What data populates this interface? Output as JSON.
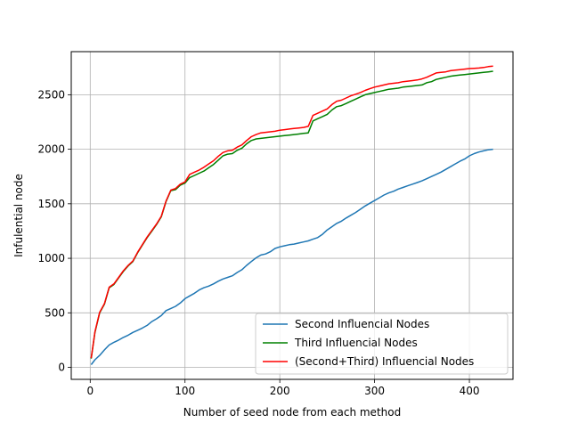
{
  "chart_data": {
    "type": "line",
    "title": "",
    "xlabel": "Number of seed node from each method",
    "ylabel": "Infulential node",
    "xlim": [
      -20,
      446
    ],
    "ylim": [
      -110,
      2895
    ],
    "xticks": [
      0,
      100,
      200,
      300,
      400
    ],
    "yticks": [
      0,
      500,
      1000,
      1500,
      2000,
      2500
    ],
    "grid": true,
    "legend_position": "lower-right",
    "series": [
      {
        "name": "Second Influencial Nodes",
        "color": "#1f77b4",
        "x": [
          1,
          5,
          10,
          15,
          20,
          25,
          30,
          35,
          40,
          45,
          50,
          55,
          60,
          65,
          70,
          75,
          80,
          85,
          90,
          95,
          100,
          105,
          110,
          115,
          120,
          125,
          130,
          135,
          140,
          145,
          150,
          155,
          160,
          165,
          170,
          175,
          180,
          185,
          190,
          195,
          200,
          205,
          210,
          215,
          220,
          225,
          230,
          235,
          240,
          245,
          250,
          255,
          260,
          265,
          270,
          275,
          280,
          285,
          290,
          295,
          300,
          305,
          310,
          315,
          320,
          325,
          330,
          335,
          340,
          345,
          350,
          355,
          360,
          365,
          370,
          375,
          380,
          385,
          390,
          395,
          400,
          405,
          410,
          415,
          420,
          425
        ],
        "y": [
          25,
          70,
          110,
          160,
          205,
          230,
          250,
          275,
          295,
          320,
          340,
          360,
          385,
          420,
          445,
          475,
          520,
          540,
          560,
          590,
          630,
          655,
          680,
          710,
          730,
          745,
          765,
          790,
          810,
          825,
          840,
          870,
          895,
          935,
          970,
          1005,
          1030,
          1040,
          1060,
          1090,
          1105,
          1115,
          1125,
          1130,
          1140,
          1150,
          1160,
          1175,
          1190,
          1220,
          1260,
          1290,
          1320,
          1340,
          1370,
          1395,
          1420,
          1450,
          1480,
          1505,
          1530,
          1555,
          1580,
          1600,
          1615,
          1635,
          1650,
          1665,
          1680,
          1695,
          1710,
          1730,
          1750,
          1770,
          1790,
          1815,
          1840,
          1865,
          1890,
          1910,
          1940,
          1960,
          1975,
          1985,
          1995,
          2000
        ]
      },
      {
        "name": "Third Influencial Nodes",
        "color": "#008000",
        "x": [
          1,
          5,
          10,
          15,
          20,
          25,
          30,
          35,
          40,
          45,
          50,
          55,
          60,
          65,
          70,
          75,
          80,
          85,
          90,
          95,
          100,
          105,
          110,
          115,
          120,
          125,
          130,
          135,
          140,
          145,
          150,
          155,
          160,
          165,
          170,
          175,
          180,
          185,
          190,
          195,
          200,
          205,
          210,
          215,
          220,
          225,
          230,
          235,
          240,
          245,
          250,
          255,
          260,
          265,
          270,
          275,
          280,
          285,
          290,
          295,
          300,
          305,
          310,
          315,
          320,
          325,
          330,
          335,
          340,
          345,
          350,
          355,
          360,
          365,
          370,
          375,
          380,
          385,
          390,
          395,
          400,
          405,
          410,
          415,
          420,
          425
        ],
        "y": [
          80,
          320,
          500,
          580,
          730,
          760,
          820,
          880,
          930,
          970,
          1050,
          1120,
          1190,
          1250,
          1310,
          1380,
          1520,
          1620,
          1630,
          1670,
          1690,
          1740,
          1760,
          1780,
          1800,
          1830,
          1860,
          1900,
          1940,
          1955,
          1960,
          1990,
          2010,
          2050,
          2080,
          2095,
          2100,
          2105,
          2110,
          2115,
          2120,
          2125,
          2130,
          2135,
          2140,
          2145,
          2150,
          2260,
          2280,
          2300,
          2320,
          2360,
          2390,
          2400,
          2420,
          2440,
          2460,
          2480,
          2500,
          2510,
          2520,
          2530,
          2540,
          2550,
          2555,
          2560,
          2570,
          2575,
          2580,
          2585,
          2590,
          2610,
          2620,
          2640,
          2650,
          2660,
          2670,
          2675,
          2680,
          2685,
          2690,
          2695,
          2700,
          2705,
          2710,
          2715
        ]
      },
      {
        "name": "(Second+Third) Influencial Nodes",
        "color": "#ff0000",
        "x": [
          1,
          5,
          10,
          15,
          20,
          25,
          30,
          35,
          40,
          45,
          50,
          55,
          60,
          65,
          70,
          75,
          80,
          85,
          90,
          95,
          100,
          105,
          110,
          115,
          120,
          125,
          130,
          135,
          140,
          145,
          150,
          155,
          160,
          165,
          170,
          175,
          180,
          185,
          190,
          195,
          200,
          205,
          210,
          215,
          220,
          225,
          230,
          235,
          240,
          245,
          250,
          255,
          260,
          265,
          270,
          275,
          280,
          285,
          290,
          295,
          300,
          305,
          310,
          315,
          320,
          325,
          330,
          335,
          340,
          345,
          350,
          355,
          360,
          365,
          370,
          375,
          380,
          385,
          390,
          395,
          400,
          405,
          410,
          415,
          420,
          425
        ],
        "y": [
          85,
          325,
          505,
          585,
          735,
          765,
          825,
          885,
          935,
          975,
          1055,
          1125,
          1195,
          1255,
          1315,
          1385,
          1525,
          1625,
          1640,
          1680,
          1700,
          1770,
          1790,
          1810,
          1835,
          1865,
          1895,
          1935,
          1970,
          1985,
          1990,
          2020,
          2040,
          2080,
          2115,
          2135,
          2150,
          2155,
          2160,
          2165,
          2175,
          2180,
          2185,
          2190,
          2195,
          2200,
          2210,
          2310,
          2330,
          2350,
          2370,
          2410,
          2440,
          2450,
          2470,
          2490,
          2505,
          2520,
          2540,
          2555,
          2570,
          2580,
          2590,
          2600,
          2605,
          2610,
          2620,
          2625,
          2630,
          2635,
          2645,
          2660,
          2680,
          2700,
          2705,
          2710,
          2720,
          2725,
          2730,
          2735,
          2740,
          2742,
          2745,
          2750,
          2758,
          2762
        ]
      }
    ]
  }
}
